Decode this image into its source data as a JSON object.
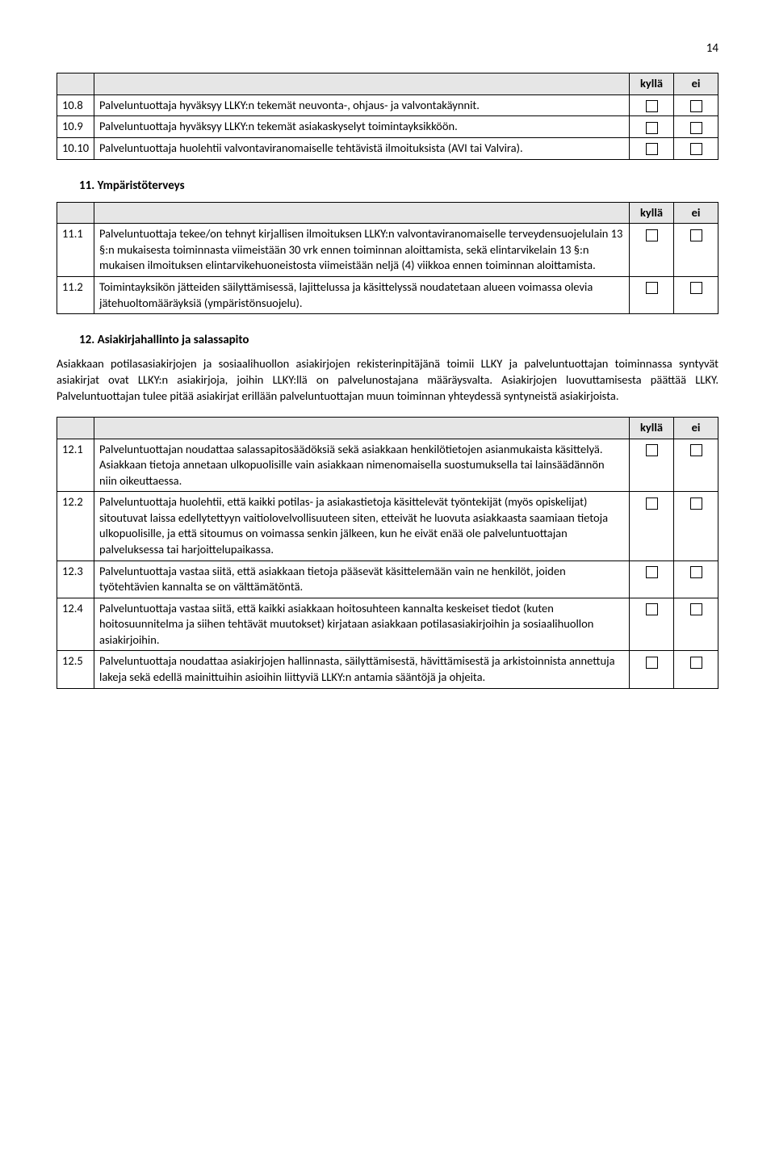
{
  "page_number": "14",
  "col_headers": {
    "yes": "kyllä",
    "no": "ei"
  },
  "table1": {
    "rows": [
      {
        "num": "10.8",
        "text": "Palveluntuottaja hyväksyy LLKY:n tekemät neuvonta-, ohjaus- ja valvontakäynnit."
      },
      {
        "num": "10.9",
        "text": "Palveluntuottaja hyväksyy LLKY:n tekemät asiakaskyselyt toimintayksikköön."
      },
      {
        "num": "10.10",
        "text": "Palveluntuottaja huolehtii valvontaviranomaiselle tehtävistä ilmoituksista (AVI tai Valvira)."
      }
    ]
  },
  "section11": {
    "title": "11. Ympäristöterveys"
  },
  "table2": {
    "rows": [
      {
        "num": "11.1",
        "text": "Palveluntuottaja tekee/on tehnyt kirjallisen ilmoituksen LLKY:n valvontaviranomaiselle terveydensuojelulain 13 §:n mukaisesta toiminnasta viimeistään 30 vrk ennen toiminnan aloittamista, sekä elintarvikelain 13 §:n mukaisen ilmoituksen elintarvikehuoneistosta viimeistään neljä (4) viikkoa ennen toiminnan aloittamista."
      },
      {
        "num": "11.2",
        "text": "Toimintayksikön jätteiden säilyttämisessä, lajittelussa ja käsittelyssä noudatetaan alueen voimassa olevia jätehuoltomääräyksiä (ympäristönsuojelu)."
      }
    ]
  },
  "section12": {
    "title": "12. Asiakirjahallinto ja salassapito",
    "intro": "Asiakkaan potilasasiakirjojen ja sosiaalihuollon asiakirjojen rekisterinpitäjänä toimii LLKY ja palveluntuottajan toiminnassa syntyvät asiakirjat ovat LLKY:n asiakirjoja, joihin LLKY:llä on palvelunostajana määräysvalta. Asiakirjojen luovuttamisesta päättää LLKY. Palveluntuottajan tulee pitää asiakirjat erillään palveluntuottajan muun toiminnan yhteydessä syntyneistä asiakirjoista."
  },
  "table3": {
    "rows": [
      {
        "num": "12.1",
        "text": "Palveluntuottajan noudattaa salassapitosäädöksiä sekä asiakkaan henkilötietojen asianmukaista käsittelyä. Asiakkaan tietoja annetaan ulkopuolisille vain asiakkaan nimenomaisella suostumuksella tai lainsäädännön niin oikeuttaessa."
      },
      {
        "num": "12.2",
        "text": "Palveluntuottaja huolehtii, että kaikki potilas- ja asiakastietoja käsittelevät työntekijät (myös opiskelijat) sitoutuvat laissa edellytettyyn vaitiolovelvollisuuteen siten, etteivät he luovuta asiakkaasta saamiaan tietoja ulkopuolisille, ja että sitoumus on voimassa senkin jälkeen, kun he eivät enää ole palveluntuottajan palveluksessa tai harjoittelupaikassa."
      },
      {
        "num": "12.3",
        "text": "Palveluntuottaja vastaa siitä, että asiakkaan tietoja pääsevät käsittelemään vain ne henkilöt, joiden työtehtävien kannalta se on välttämätöntä."
      },
      {
        "num": "12.4",
        "text": "Palveluntuottaja vastaa siitä, että kaikki asiakkaan hoitosuhteen kannalta keskeiset tiedot (kuten hoitosuunnitelma ja siihen tehtävät muutokset) kirjataan asiakkaan potilasasiakirjoihin ja sosiaalihuollon asiakirjoihin."
      },
      {
        "num": "12.5",
        "text": "Palveluntuottaja noudattaa asiakirjojen hallinnasta, säilyttämisestä, hävittämisestä ja arkistoinnista annettuja lakeja sekä edellä mainittuihin asioihin liittyviä LLKY:n antamia sääntöjä ja ohjeita."
      }
    ]
  }
}
